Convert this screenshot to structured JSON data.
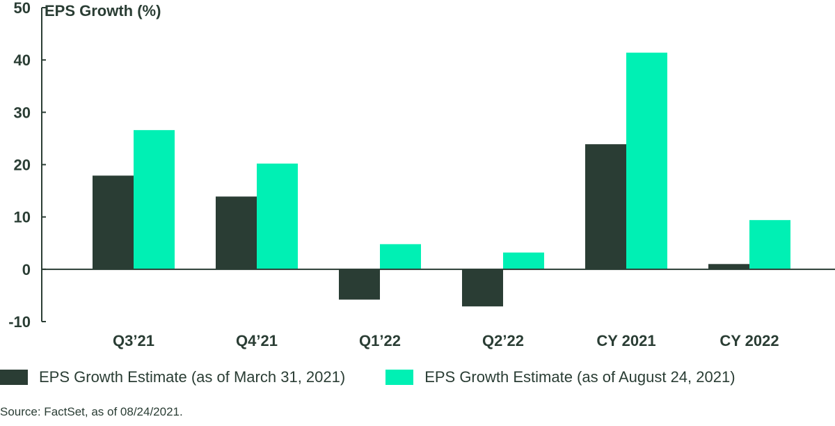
{
  "chart_data": {
    "type": "bar",
    "title": "EPS Growth (%)",
    "categories": [
      "Q3’21",
      "Q4’21",
      "Q1’22",
      "Q2’22",
      "CY 2021",
      "CY 2022"
    ],
    "series": [
      {
        "name": "EPS Growth Estimate (as of March 31, 2021)",
        "color": "#2a3d34",
        "values": [
          17.9,
          13.9,
          -5.8,
          -7.1,
          23.9,
          1.0
        ]
      },
      {
        "name": "EPS Growth Estimate (as of August 24, 2021)",
        "color": "#00f0b4",
        "values": [
          26.6,
          20.2,
          4.8,
          3.2,
          41.4,
          9.4
        ]
      }
    ],
    "yticks": [
      50,
      40,
      30,
      20,
      10,
      0,
      -10
    ],
    "ylim": [
      -10,
      50
    ],
    "grid": false
  },
  "source": "Source: FactSet, as of 08/24/2021."
}
